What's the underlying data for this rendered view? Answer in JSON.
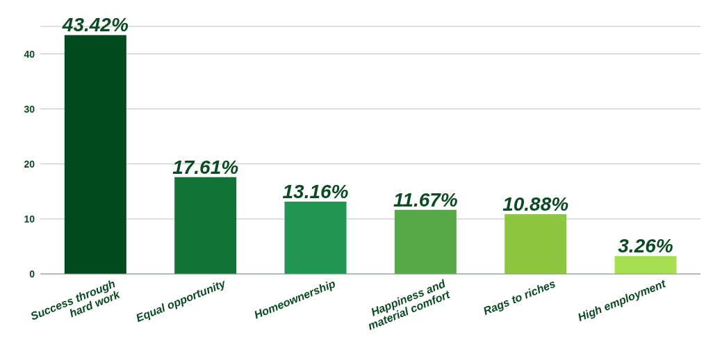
{
  "chart_data": {
    "type": "bar",
    "categories": [
      "Success through hard work",
      "Equal opportunity",
      "Homeownership",
      "Happiness and material comfort",
      "Rags to riches",
      "High employment"
    ],
    "values": [
      43.42,
      17.61,
      13.16,
      11.67,
      10.88,
      3.26
    ],
    "colors": [
      "#004a1e",
      "#137236",
      "#219653",
      "#55aa47",
      "#8dc63f",
      "#a6e050"
    ],
    "value_labels": [
      "43.42%",
      "17.61%",
      "13.16%",
      "11.67%",
      "10.88%",
      "3.26%"
    ],
    "ylim": [
      0,
      45
    ],
    "yticks": [
      0,
      10,
      20,
      30,
      40
    ],
    "grid": "y"
  }
}
